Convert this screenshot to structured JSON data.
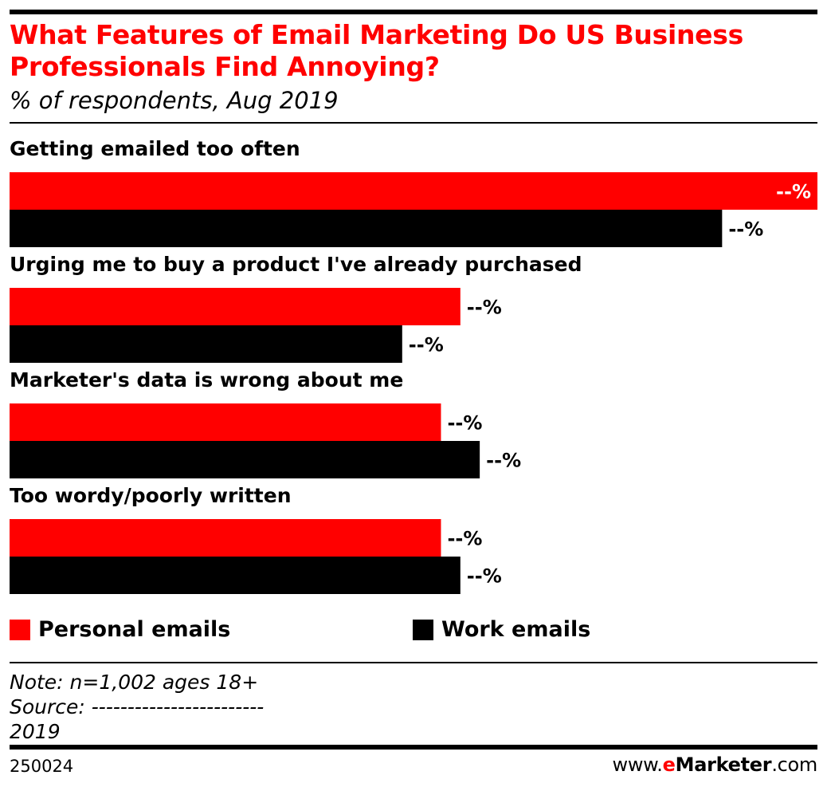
{
  "header": {
    "title": "What Features of Email Marketing Do US Business Professionals Find Annoying?",
    "subtitle": "% of respondents, Aug 2019"
  },
  "colors": {
    "accent": "#ff0000",
    "personal": "#ff0000",
    "work": "#000000",
    "label_on_bar": "#ffffff",
    "text": "#000000"
  },
  "chart_data": {
    "type": "bar",
    "orientation": "horizontal",
    "categories": [
      "Getting emailed too often",
      "Urging me to buy a product I've already purchased",
      "Marketer's data is wrong about me",
      "Too wordy/poorly written"
    ],
    "series": [
      {
        "name": "Personal emails",
        "values": [
          100,
          55.8,
          53.4,
          53.4
        ],
        "labels": [
          "--%",
          "--%",
          "--%",
          "--%"
        ]
      },
      {
        "name": "Work emails",
        "values": [
          88.2,
          48.6,
          58.2,
          55.8
        ],
        "labels": [
          "--%",
          "--%",
          "--%",
          "--%"
        ]
      }
    ],
    "value_scale": "relative; values hidden in source (shown as --%), estimated from bar lengths with longest bar = 100",
    "xlim": [
      0,
      100
    ],
    "legend_position": "bottom",
    "grid": false
  },
  "legend": {
    "personal_label": "Personal emails",
    "work_label": "Work emails"
  },
  "footer": {
    "note_lines": [
      "Note: n=1,002 ages 18+",
      "Source: ------------------------",
      "2019"
    ],
    "chart_id": "250024",
    "brand_prefix": "www.",
    "brand_e": "e",
    "brand_main": "Marketer",
    "brand_suffix": ".com"
  }
}
